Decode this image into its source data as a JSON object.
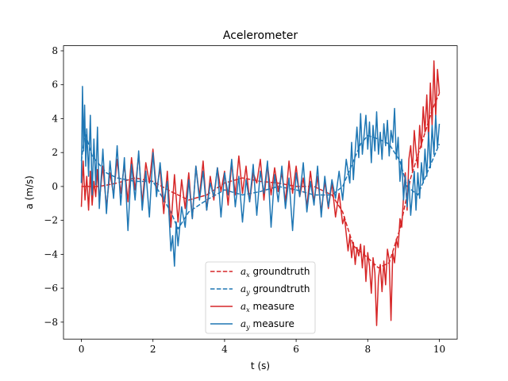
{
  "chart_data": {
    "type": "line",
    "title": "Acelerometer",
    "xlabel": "t (s)",
    "ylabel": "a (m/s)",
    "xlim": [
      -0.5,
      10.5
    ],
    "ylim": [
      -9,
      8.3
    ],
    "xticks": [
      0,
      2,
      4,
      6,
      8,
      10
    ],
    "yticks": [
      -8,
      -6,
      -4,
      -2,
      0,
      2,
      4,
      6,
      8
    ],
    "xtick_labels": [
      "0",
      "2",
      "4",
      "6",
      "8",
      "10"
    ],
    "ytick_labels": [
      "−8",
      "−6",
      "−4",
      "−2",
      "0",
      "2",
      "4",
      "6",
      "8"
    ],
    "grid": false,
    "legend_position": "lower-center",
    "legend": [
      {
        "var": "a",
        "sub": "x",
        "text": "groundtruth",
        "style": "dashed",
        "color": "#d62728"
      },
      {
        "var": "a",
        "sub": "y",
        "text": "groundtruth",
        "style": "dashed",
        "color": "#1f77b4"
      },
      {
        "var": "a",
        "sub": "x",
        "text": "measure",
        "style": "solid",
        "color": "#d62728"
      },
      {
        "var": "a",
        "sub": "y",
        "text": "measure",
        "style": "solid",
        "color": "#1f77b4"
      }
    ],
    "series": [
      {
        "name": "ax groundtruth",
        "color": "#d62728",
        "style": "dashed",
        "x": [
          0,
          0.5,
          1,
          1.5,
          2,
          2.5,
          3,
          3.5,
          4,
          4.5,
          5,
          5.5,
          6,
          6.5,
          7,
          7.3,
          7.6,
          8,
          8.3,
          8.6,
          8.9,
          9.2,
          9.5,
          9.8,
          10
        ],
        "y": [
          0,
          0,
          0.2,
          0.5,
          0.3,
          -0.3,
          -0.8,
          -0.5,
          0.2,
          0.5,
          0.3,
          0.2,
          0,
          0,
          -0.5,
          -1.5,
          -3.5,
          -4.2,
          -4.8,
          -4.5,
          -2.5,
          0.5,
          2.5,
          4.5,
          5.5
        ]
      },
      {
        "name": "ay groundtruth",
        "color": "#1f77b4",
        "style": "dashed",
        "x": [
          0,
          0.1,
          0.3,
          0.7,
          1,
          1.5,
          2,
          2.5,
          2.7,
          3,
          3.5,
          4,
          4.5,
          5,
          5.5,
          6,
          6.5,
          7,
          7.3,
          7.5,
          7.8,
          8,
          8.3,
          8.6,
          8.9,
          9.1,
          9.4,
          9.7,
          10
        ],
        "y": [
          1.5,
          3.2,
          1.8,
          0.8,
          0.5,
          0.3,
          0.3,
          -1.5,
          -2.5,
          -1.5,
          -0.8,
          -0.2,
          -0.5,
          -0.3,
          0,
          -0.2,
          -0.5,
          -0.5,
          0,
          1,
          2.5,
          3,
          2.8,
          2.5,
          1.5,
          0,
          -0.5,
          1,
          2.5
        ]
      },
      {
        "name": "ax measure",
        "color": "#d62728",
        "style": "solid",
        "x": [
          0,
          0.05,
          0.1,
          0.15,
          0.2,
          0.25,
          0.3,
          0.35,
          0.4,
          0.45,
          0.5,
          0.6,
          0.7,
          0.8,
          0.9,
          1,
          1.1,
          1.2,
          1.3,
          1.4,
          1.5,
          1.6,
          1.7,
          1.8,
          1.9,
          2,
          2.1,
          2.2,
          2.3,
          2.4,
          2.5,
          2.6,
          2.7,
          2.8,
          2.9,
          3,
          3.1,
          3.2,
          3.3,
          3.4,
          3.5,
          3.6,
          3.7,
          3.8,
          3.9,
          4,
          4.1,
          4.2,
          4.3,
          4.4,
          4.5,
          4.6,
          4.7,
          4.8,
          4.9,
          5,
          5.1,
          5.2,
          5.3,
          5.4,
          5.5,
          5.6,
          5.7,
          5.8,
          5.9,
          6,
          6.1,
          6.2,
          6.3,
          6.4,
          6.5,
          6.6,
          6.7,
          6.8,
          6.9,
          7,
          7.1,
          7.2,
          7.3,
          7.35,
          7.4,
          7.45,
          7.5,
          7.55,
          7.6,
          7.65,
          7.7,
          7.75,
          7.8,
          7.85,
          7.9,
          7.95,
          8,
          8.05,
          8.1,
          8.15,
          8.2,
          8.25,
          8.3,
          8.35,
          8.4,
          8.45,
          8.5,
          8.55,
          8.6,
          8.65,
          8.7,
          8.75,
          8.8,
          8.85,
          8.9,
          8.95,
          9,
          9.05,
          9.1,
          9.15,
          9.2,
          9.25,
          9.3,
          9.35,
          9.4,
          9.45,
          9.5,
          9.55,
          9.6,
          9.65,
          9.7,
          9.75,
          9.8,
          9.85,
          9.9,
          9.95,
          10
        ],
        "y": [
          -1.2,
          1.5,
          -0.8,
          0.6,
          -1.4,
          0.9,
          -1.1,
          0.3,
          -0.6,
          1,
          -0.9,
          1.2,
          -1.2,
          0.8,
          -0.5,
          1.6,
          -0.4,
          1.3,
          -0.9,
          1.7,
          -0.2,
          1.9,
          -1,
          1.4,
          0.2,
          2.2,
          -0.3,
          1.1,
          -1.6,
          0.9,
          -2.4,
          0.7,
          -2.1,
          0.4,
          -1.3,
          0.8,
          -1.9,
          1.2,
          -0.6,
          1.5,
          -1.4,
          0.6,
          -0.8,
          1.1,
          -0.3,
          0.9,
          -1.1,
          1.4,
          -0.5,
          1.8,
          -0.4,
          1.2,
          -0.9,
          0.8,
          0.2,
          1.6,
          -0.8,
          1.3,
          -0.5,
          1.1,
          -0.3,
          0.8,
          -0.9,
          1.5,
          -0.4,
          1.2,
          -0.6,
          0.5,
          -1.2,
          0.9,
          -0.9,
          0.6,
          -1.5,
          0.3,
          -1.3,
          0.2,
          -1.8,
          -0.4,
          -2.2,
          -1.8,
          -2.8,
          -3.8,
          -2.9,
          -4.2,
          -3.3,
          -4.6,
          -3.6,
          -4.1,
          -3.4,
          -4.8,
          -3.5,
          -5.6,
          -3.9,
          -4.7,
          -6.3,
          -4.2,
          -5.1,
          -8.2,
          -5.4,
          -4.6,
          -6.2,
          -4.4,
          -5.8,
          -3.7,
          -4.3,
          -7.9,
          -3.9,
          -4.5,
          -3.1,
          -3.6,
          -1.9,
          -2.4,
          -0.6,
          0.8,
          -1.4,
          1.6,
          2.4,
          0.9,
          3.3,
          2.1,
          1.1,
          3.6,
          2.3,
          4.7,
          3.2,
          5.4,
          2.8,
          6.1,
          3.6,
          7.4,
          4.1,
          6.9,
          5.5
        ]
      },
      {
        "name": "ay measure",
        "color": "#1f77b4",
        "style": "solid",
        "x": [
          0,
          0.03,
          0.06,
          0.09,
          0.12,
          0.15,
          0.2,
          0.25,
          0.3,
          0.35,
          0.4,
          0.45,
          0.5,
          0.6,
          0.7,
          0.8,
          0.9,
          1,
          1.1,
          1.2,
          1.3,
          1.4,
          1.5,
          1.6,
          1.7,
          1.8,
          1.9,
          2,
          2.1,
          2.2,
          2.3,
          2.4,
          2.5,
          2.55,
          2.6,
          2.65,
          2.7,
          2.8,
          2.9,
          3,
          3.1,
          3.2,
          3.3,
          3.4,
          3.5,
          3.6,
          3.7,
          3.8,
          3.9,
          4,
          4.1,
          4.2,
          4.3,
          4.4,
          4.5,
          4.6,
          4.7,
          4.8,
          4.9,
          5,
          5.1,
          5.2,
          5.3,
          5.4,
          5.5,
          5.6,
          5.7,
          5.8,
          5.9,
          6,
          6.1,
          6.2,
          6.3,
          6.4,
          6.5,
          6.6,
          6.7,
          6.8,
          6.9,
          7,
          7.1,
          7.2,
          7.3,
          7.4,
          7.5,
          7.55,
          7.6,
          7.65,
          7.7,
          7.75,
          7.8,
          7.85,
          7.9,
          7.95,
          8,
          8.05,
          8.1,
          8.15,
          8.2,
          8.25,
          8.3,
          8.35,
          8.4,
          8.45,
          8.5,
          8.55,
          8.6,
          8.65,
          8.7,
          8.75,
          8.8,
          8.85,
          8.9,
          8.95,
          9,
          9.05,
          9.1,
          9.15,
          9.2,
          9.25,
          9.3,
          9.35,
          9.4,
          9.45,
          9.5,
          9.55,
          9.6,
          9.65,
          9.7,
          9.75,
          9.8,
          9.85,
          9.9,
          9.95,
          10
        ],
        "y": [
          0.2,
          5.9,
          2.1,
          4.8,
          1.2,
          3.4,
          0.6,
          4.2,
          -0.5,
          2.8,
          0.1,
          3.5,
          -1.3,
          2.2,
          -1.6,
          1.5,
          -0.7,
          2.4,
          -1.1,
          1.7,
          -2.6,
          1.3,
          -0.8,
          2.1,
          -1.4,
          0.9,
          -1.8,
          2,
          -0.6,
          1.4,
          -0.9,
          0.3,
          -3.8,
          -2.9,
          -4.7,
          -2.1,
          -3.5,
          -1.2,
          -2.4,
          0.4,
          -1.9,
          1.2,
          -0.8,
          0.9,
          -1.4,
          0.2,
          -0.6,
          1.1,
          -1.8,
          0.8,
          -0.5,
          1.6,
          -1.2,
          0.6,
          -2.1,
          0.4,
          -0.9,
          1.3,
          -1.7,
          0.9,
          -0.4,
          1.5,
          -2.4,
          0.7,
          -0.9,
          1.2,
          -1.3,
          0.5,
          -2.6,
          0.8,
          -0.6,
          1.4,
          -1.5,
          0.3,
          -1.1,
          1.2,
          -1.8,
          0.6,
          -1.2,
          0.4,
          -0.7,
          0.9,
          -0.8,
          1.6,
          0.2,
          2.6,
          0.4,
          2.1,
          3.5,
          1.7,
          4.3,
          1.9,
          3.1,
          4.2,
          2.2,
          3.8,
          1.4,
          3.6,
          2.1,
          4.4,
          1.9,
          3.2,
          1.6,
          3.7,
          2.4,
          3.9,
          1.8,
          3.3,
          2.6,
          4.6,
          1.6,
          2.9,
          0.3,
          1.6,
          -0.8,
          0.6,
          -1.2,
          0.4,
          -1.7,
          -0.4,
          0.9,
          -1.4,
          0.8,
          -0.7,
          1.4,
          0.2,
          2.2,
          0.6,
          3.2,
          1.1,
          3.6,
          1.9,
          4.2,
          2.3,
          3.7
        ]
      }
    ]
  }
}
